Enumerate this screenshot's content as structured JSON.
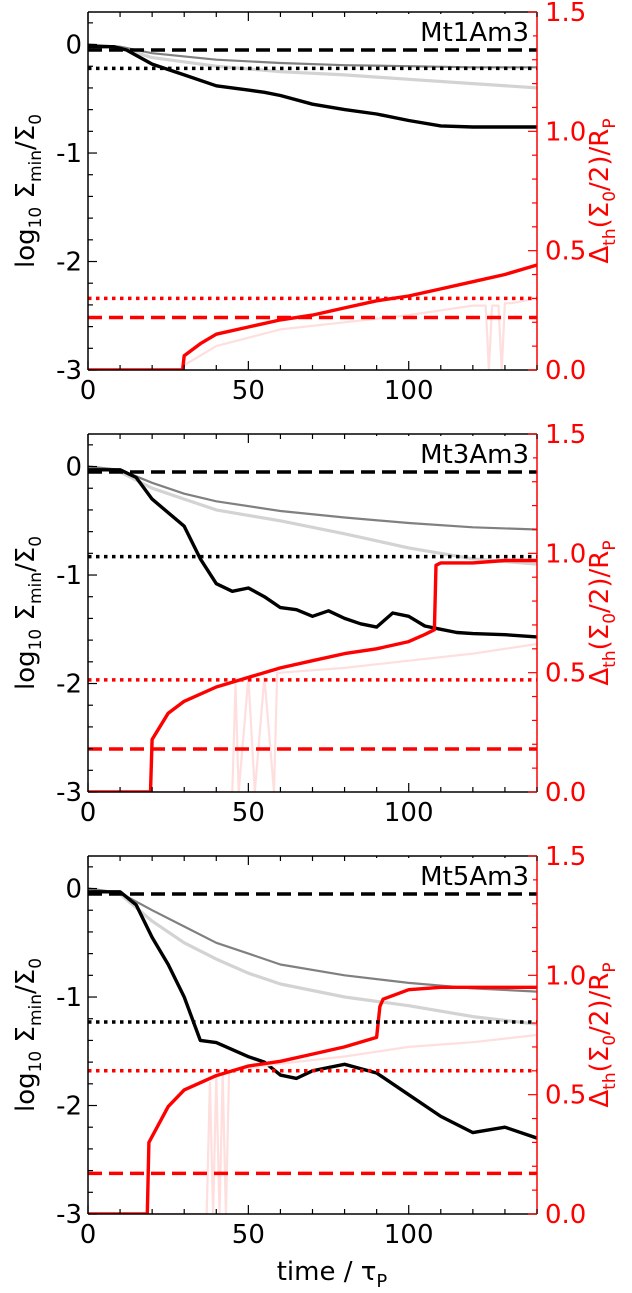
{
  "figure": {
    "xlabel": "time / τ",
    "xlabel_sub": "P",
    "ylabel_left": {
      "main": "log",
      "sub1": "10",
      "mid": " Σ",
      "sub2": "min",
      "tail": "/Σ",
      "sub3": "0"
    },
    "ylabel_right": {
      "main": "Δ",
      "sub1": "th",
      "mid": "(Σ",
      "sub2": "0",
      "tail": "/2)/R",
      "sub3": "P"
    },
    "colors": {
      "black": "#000000",
      "dark_gray": "#808080",
      "light_gray": "#d3d3d3",
      "red": "#ff0000",
      "pink": "#ffc0cb",
      "light_pink": "#ffdede"
    }
  },
  "chart_data": [
    {
      "type": "line",
      "title": "Mt1Am3",
      "xlim": [
        0,
        140
      ],
      "ylim_left": [
        -3,
        0.3
      ],
      "ylim_right": [
        0,
        1.5
      ],
      "x_ticks": [
        0,
        50,
        100
      ],
      "y_ticks_left": [
        -3,
        -2,
        -1,
        0
      ],
      "y_ticks_right": [
        0.0,
        0.5,
        1.0,
        1.5
      ],
      "hlines_left": [
        {
          "y": -0.05,
          "style": "dashed",
          "color": "#000000"
        },
        {
          "y": -0.22,
          "style": "dotted",
          "color": "#000000"
        }
      ],
      "hlines_right": [
        {
          "y": 0.3,
          "style": "dotted",
          "color": "#ff0000"
        },
        {
          "y": 0.22,
          "style": "dashed",
          "color": "#ff0000"
        }
      ],
      "series": [
        {
          "axis": "left",
          "color": "#d3d3d3",
          "width": 3.2,
          "x": [
            0,
            10,
            20,
            40,
            60,
            80,
            100,
            120,
            140
          ],
          "y": [
            0,
            -0.03,
            -0.12,
            -0.2,
            -0.25,
            -0.28,
            -0.32,
            -0.36,
            -0.4
          ]
        },
        {
          "axis": "left",
          "color": "#808080",
          "width": 2.2,
          "x": [
            0,
            10,
            20,
            40,
            60,
            80,
            100,
            120,
            140
          ],
          "y": [
            0,
            -0.02,
            -0.08,
            -0.14,
            -0.17,
            -0.19,
            -0.2,
            -0.21,
            -0.21
          ]
        },
        {
          "axis": "left",
          "color": "#000000",
          "width": 3.4,
          "x": [
            0,
            8,
            12,
            20,
            30,
            40,
            50,
            55,
            60,
            70,
            80,
            90,
            100,
            110,
            120,
            130,
            140
          ],
          "y": [
            -0.02,
            -0.02,
            -0.05,
            -0.18,
            -0.28,
            -0.38,
            -0.42,
            -0.44,
            -0.47,
            -0.55,
            -0.6,
            -0.64,
            -0.7,
            -0.75,
            -0.76,
            -0.76,
            -0.76
          ]
        },
        {
          "axis": "right",
          "color": "#ffdede",
          "width": 2.2,
          "x": [
            0,
            29,
            30,
            40,
            60,
            80,
            100,
            120,
            124,
            125,
            126,
            128,
            129,
            130,
            132,
            140
          ],
          "y": [
            0,
            0,
            0.02,
            0.1,
            0.17,
            0.2,
            0.23,
            0.27,
            0.27,
            0,
            0.27,
            0.27,
            0,
            0.28,
            0.28,
            0.3
          ]
        },
        {
          "axis": "right",
          "color": "#ff0000",
          "width": 3.4,
          "x": [
            0,
            29.5,
            30,
            35,
            40,
            50,
            60,
            70,
            80,
            90,
            100,
            110,
            120,
            130,
            140
          ],
          "y": [
            0,
            0,
            0.06,
            0.11,
            0.15,
            0.18,
            0.21,
            0.23,
            0.26,
            0.29,
            0.31,
            0.34,
            0.37,
            0.4,
            0.44
          ]
        }
      ]
    },
    {
      "type": "line",
      "title": "Mt3Am3",
      "xlim": [
        0,
        140
      ],
      "ylim_left": [
        -3,
        0.3
      ],
      "ylim_right": [
        0,
        1.5
      ],
      "x_ticks": [
        0,
        50,
        100
      ],
      "y_ticks_left": [
        -3,
        -2,
        -1,
        0
      ],
      "y_ticks_right": [
        0.0,
        0.5,
        1.0,
        1.5
      ],
      "hlines_left": [
        {
          "y": -0.05,
          "style": "dashed",
          "color": "#000000"
        },
        {
          "y": -0.83,
          "style": "dotted",
          "color": "#000000"
        }
      ],
      "hlines_right": [
        {
          "y": 0.47,
          "style": "dotted",
          "color": "#ff0000"
        },
        {
          "y": 0.18,
          "style": "dashed",
          "color": "#ff0000"
        }
      ],
      "series": [
        {
          "axis": "left",
          "color": "#d3d3d3",
          "width": 3.2,
          "x": [
            0,
            10,
            20,
            30,
            40,
            50,
            60,
            80,
            100,
            120,
            140
          ],
          "y": [
            0,
            -0.05,
            -0.2,
            -0.3,
            -0.4,
            -0.45,
            -0.5,
            -0.62,
            -0.75,
            -0.85,
            -0.9
          ]
        },
        {
          "axis": "left",
          "color": "#808080",
          "width": 2.2,
          "x": [
            0,
            10,
            20,
            30,
            40,
            60,
            80,
            100,
            120,
            140
          ],
          "y": [
            0,
            -0.03,
            -0.15,
            -0.25,
            -0.32,
            -0.41,
            -0.47,
            -0.52,
            -0.56,
            -0.58
          ]
        },
        {
          "axis": "left",
          "color": "#000000",
          "width": 3.4,
          "x": [
            0,
            10,
            15,
            20,
            30,
            35,
            40,
            45,
            50,
            55,
            60,
            65,
            70,
            75,
            80,
            85,
            90,
            95,
            100,
            105,
            110,
            115,
            120,
            130,
            140
          ],
          "y": [
            -0.03,
            -0.03,
            -0.1,
            -0.3,
            -0.55,
            -0.85,
            -1.08,
            -1.15,
            -1.12,
            -1.2,
            -1.3,
            -1.32,
            -1.38,
            -1.33,
            -1.4,
            -1.45,
            -1.48,
            -1.35,
            -1.38,
            -1.47,
            -1.5,
            -1.53,
            -1.54,
            -1.55,
            -1.57
          ]
        },
        {
          "axis": "right",
          "color": "#ffdede",
          "width": 2.2,
          "x": [
            0,
            45,
            46,
            47,
            50,
            52,
            55,
            58,
            59,
            60,
            80,
            100,
            120,
            140
          ],
          "y": [
            0,
            0,
            0.45,
            0,
            0.48,
            0,
            0.48,
            0,
            0.5,
            0.5,
            0.52,
            0.55,
            0.58,
            0.62
          ]
        },
        {
          "axis": "right",
          "color": "#ff0000",
          "width": 3.4,
          "x": [
            0,
            19.5,
            20,
            25,
            30,
            40,
            50,
            60,
            70,
            80,
            90,
            100,
            105,
            108,
            108.5,
            110,
            120,
            130,
            140
          ],
          "y": [
            0,
            0,
            0.22,
            0.33,
            0.38,
            0.44,
            0.48,
            0.52,
            0.55,
            0.58,
            0.6,
            0.63,
            0.66,
            0.68,
            0.95,
            0.96,
            0.96,
            0.97,
            0.97
          ]
        }
      ]
    },
    {
      "type": "line",
      "title": "Mt5Am3",
      "xlim": [
        0,
        140
      ],
      "ylim_left": [
        -3,
        0.3
      ],
      "ylim_right": [
        0,
        1.5
      ],
      "x_ticks": [
        0,
        50,
        100
      ],
      "y_ticks_left": [
        -3,
        -2,
        -1,
        0
      ],
      "y_ticks_right": [
        0.0,
        0.5,
        1.0,
        1.5
      ],
      "hlines_left": [
        {
          "y": -0.05,
          "style": "dashed",
          "color": "#000000"
        },
        {
          "y": -1.23,
          "style": "dotted",
          "color": "#000000"
        }
      ],
      "hlines_right": [
        {
          "y": 0.6,
          "style": "dotted",
          "color": "#ff0000"
        },
        {
          "y": 0.17,
          "style": "dashed",
          "color": "#ff0000"
        }
      ],
      "series": [
        {
          "axis": "left",
          "color": "#d3d3d3",
          "width": 3.2,
          "x": [
            0,
            10,
            20,
            30,
            40,
            50,
            60,
            80,
            100,
            120,
            140
          ],
          "y": [
            0,
            -0.05,
            -0.3,
            -0.5,
            -0.65,
            -0.78,
            -0.88,
            -1.0,
            -1.08,
            -1.18,
            -1.25
          ]
        },
        {
          "axis": "left",
          "color": "#808080",
          "width": 2.2,
          "x": [
            0,
            10,
            20,
            30,
            40,
            50,
            60,
            80,
            100,
            120,
            140
          ],
          "y": [
            0,
            -0.04,
            -0.2,
            -0.35,
            -0.5,
            -0.6,
            -0.7,
            -0.8,
            -0.87,
            -0.92,
            -0.95
          ]
        },
        {
          "axis": "left",
          "color": "#000000",
          "width": 3.4,
          "x": [
            0,
            10,
            15,
            20,
            25,
            30,
            35,
            40,
            50,
            55,
            60,
            65,
            70,
            75,
            80,
            90,
            100,
            110,
            120,
            130,
            140
          ],
          "y": [
            -0.03,
            -0.03,
            -0.15,
            -0.45,
            -0.7,
            -1.0,
            -1.4,
            -1.42,
            -1.55,
            -1.6,
            -1.72,
            -1.75,
            -1.68,
            -1.65,
            -1.62,
            -1.7,
            -1.9,
            -2.1,
            -2.25,
            -2.2,
            -2.3
          ]
        },
        {
          "axis": "right",
          "color": "#ffdede",
          "width": 2.2,
          "x": [
            0,
            37,
            38,
            39,
            40,
            41,
            42,
            43,
            44,
            60,
            80,
            100,
            120,
            140
          ],
          "y": [
            0,
            0,
            0.55,
            0,
            0.58,
            0,
            0.58,
            0,
            0.6,
            0.63,
            0.66,
            0.7,
            0.72,
            0.75
          ]
        },
        {
          "axis": "right",
          "color": "#ff0000",
          "width": 3.4,
          "x": [
            0,
            18.5,
            19,
            25,
            30,
            40,
            50,
            60,
            70,
            80,
            90,
            91,
            92,
            100,
            110,
            120,
            130,
            140
          ],
          "y": [
            0,
            0,
            0.3,
            0.45,
            0.52,
            0.58,
            0.62,
            0.64,
            0.67,
            0.7,
            0.74,
            0.87,
            0.9,
            0.94,
            0.95,
            0.95,
            0.95,
            0.95
          ]
        }
      ]
    }
  ]
}
